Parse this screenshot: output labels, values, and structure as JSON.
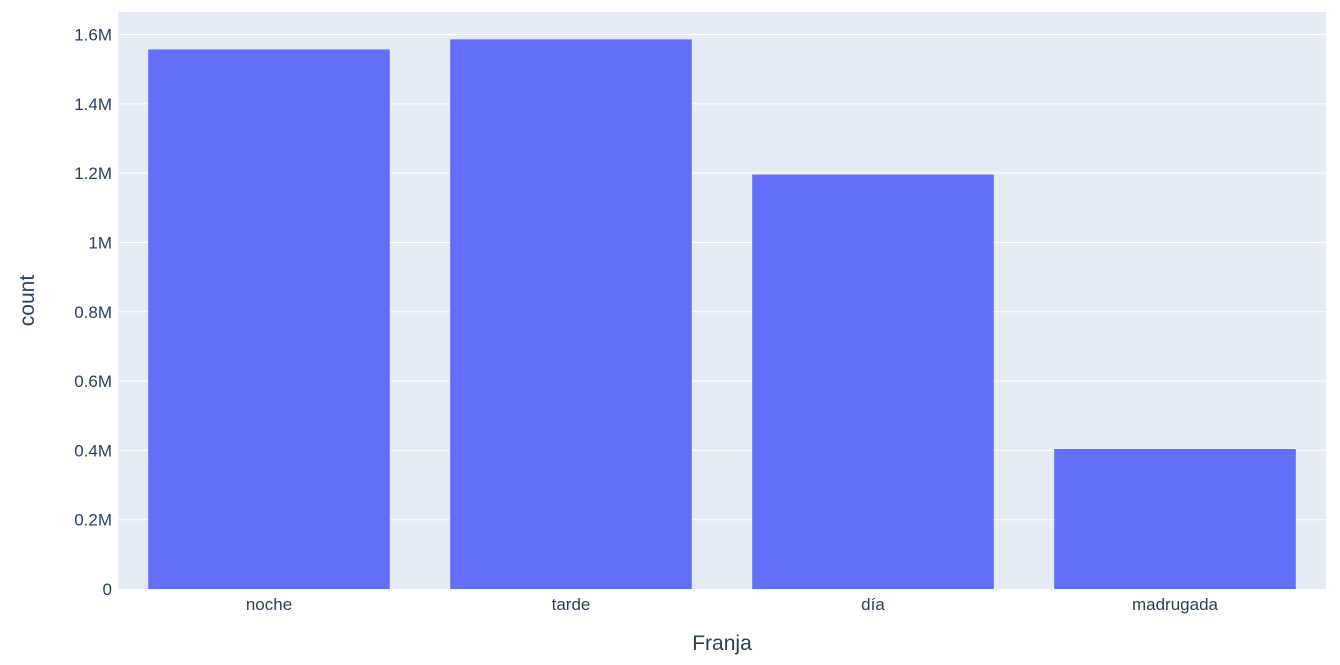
{
  "chart_data": {
    "type": "bar",
    "title": "",
    "xlabel": "Franja",
    "ylabel": "count",
    "categories": [
      "noche",
      "tarde",
      "día",
      "madrugada"
    ],
    "values": [
      1557000,
      1586000,
      1196000,
      404000
    ],
    "ylim": [
      0,
      1665000
    ],
    "yticks": [
      0,
      200000,
      400000,
      600000,
      800000,
      1000000,
      1200000,
      1400000,
      1600000
    ],
    "ytick_labels": [
      "0",
      "0.2M",
      "0.4M",
      "0.6M",
      "0.8M",
      "1M",
      "1.2M",
      "1.4M",
      "1.6M"
    ],
    "grid": true,
    "legend": "none",
    "colors": {
      "bar": "#636efa",
      "plot_background": "#e5ecf6",
      "gridline": "#ffffff",
      "text": "#2a3f5f"
    }
  }
}
